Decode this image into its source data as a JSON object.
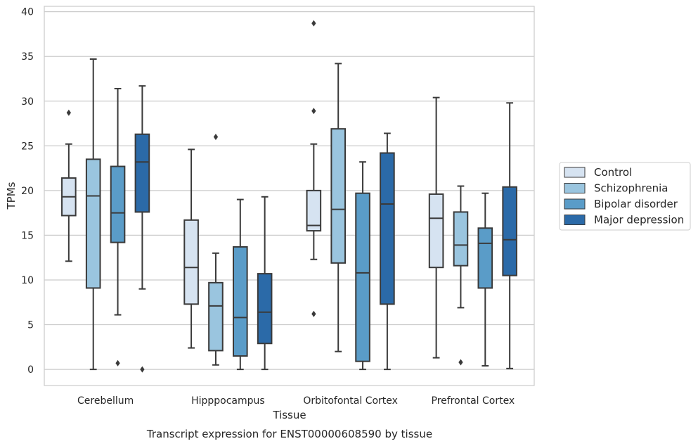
{
  "chart_data": {
    "type": "boxplot",
    "title": "Transcript expression for ENST00000608590 by tissue",
    "xlabel": "Tissue",
    "ylabel": "TPMs",
    "ylim": [
      -1.8,
      40.6
    ],
    "yticks": [
      0,
      5,
      10,
      15,
      20,
      25,
      30,
      35,
      40
    ],
    "grid": true,
    "legend_position": "right",
    "categories": [
      "Cerebellum",
      "Hipppocampus",
      "Orbitofontal Cortex",
      "Prefrontal Cortex"
    ],
    "series": [
      {
        "name": "Control",
        "color": "#d6e3f1",
        "boxes": [
          {
            "whislo": 12.1,
            "q1": 17.2,
            "med": 19.3,
            "q3": 21.4,
            "whishi": 25.2,
            "fliers": [
              28.7
            ]
          },
          {
            "whislo": 2.4,
            "q1": 7.3,
            "med": 11.4,
            "q3": 16.7,
            "whishi": 24.6,
            "fliers": []
          },
          {
            "whislo": 12.3,
            "q1": 15.5,
            "med": 16.1,
            "q3": 20.0,
            "whishi": 25.2,
            "fliers": [
              38.7,
              28.9,
              6.2
            ]
          },
          {
            "whislo": 1.3,
            "q1": 11.4,
            "med": 16.9,
            "q3": 19.6,
            "whishi": 30.4,
            "fliers": []
          }
        ]
      },
      {
        "name": "Schizophrenia",
        "color": "#9ac5df",
        "boxes": [
          {
            "whislo": 0.0,
            "q1": 9.1,
            "med": 19.4,
            "q3": 23.5,
            "whishi": 34.7,
            "fliers": []
          },
          {
            "whislo": 0.5,
            "q1": 2.1,
            "med": 7.1,
            "q3": 9.7,
            "whishi": 13.0,
            "fliers": [
              26.0
            ]
          },
          {
            "whislo": 2.0,
            "q1": 11.9,
            "med": 17.9,
            "q3": 26.9,
            "whishi": 34.2,
            "fliers": []
          },
          {
            "whislo": 6.9,
            "q1": 11.6,
            "med": 13.9,
            "q3": 17.6,
            "whishi": 20.5,
            "fliers": [
              0.8
            ]
          }
        ]
      },
      {
        "name": "Bipolar disorder",
        "color": "#5a9cc8",
        "boxes": [
          {
            "whislo": 6.1,
            "q1": 14.2,
            "med": 17.5,
            "q3": 22.7,
            "whishi": 31.4,
            "fliers": [
              0.7
            ]
          },
          {
            "whislo": 0.0,
            "q1": 1.5,
            "med": 5.8,
            "q3": 13.7,
            "whishi": 19.0,
            "fliers": []
          },
          {
            "whislo": 0.0,
            "q1": 0.9,
            "med": 10.8,
            "q3": 19.7,
            "whishi": 23.2,
            "fliers": []
          },
          {
            "whislo": 0.4,
            "q1": 9.1,
            "med": 14.1,
            "q3": 15.8,
            "whishi": 19.7,
            "fliers": []
          }
        ]
      },
      {
        "name": "Major depression",
        "color": "#2b6aa8",
        "boxes": [
          {
            "whislo": 9.0,
            "q1": 17.6,
            "med": 23.2,
            "q3": 26.3,
            "whishi": 31.7,
            "fliers": [
              0.0
            ]
          },
          {
            "whislo": 0.0,
            "q1": 2.9,
            "med": 6.4,
            "q3": 10.7,
            "whishi": 19.3,
            "fliers": []
          },
          {
            "whislo": 0.0,
            "q1": 7.3,
            "med": 18.5,
            "q3": 24.2,
            "whishi": 26.4,
            "fliers": []
          },
          {
            "whislo": 0.1,
            "q1": 10.5,
            "med": 14.5,
            "q3": 20.4,
            "whishi": 29.8,
            "fliers": []
          }
        ]
      }
    ]
  }
}
